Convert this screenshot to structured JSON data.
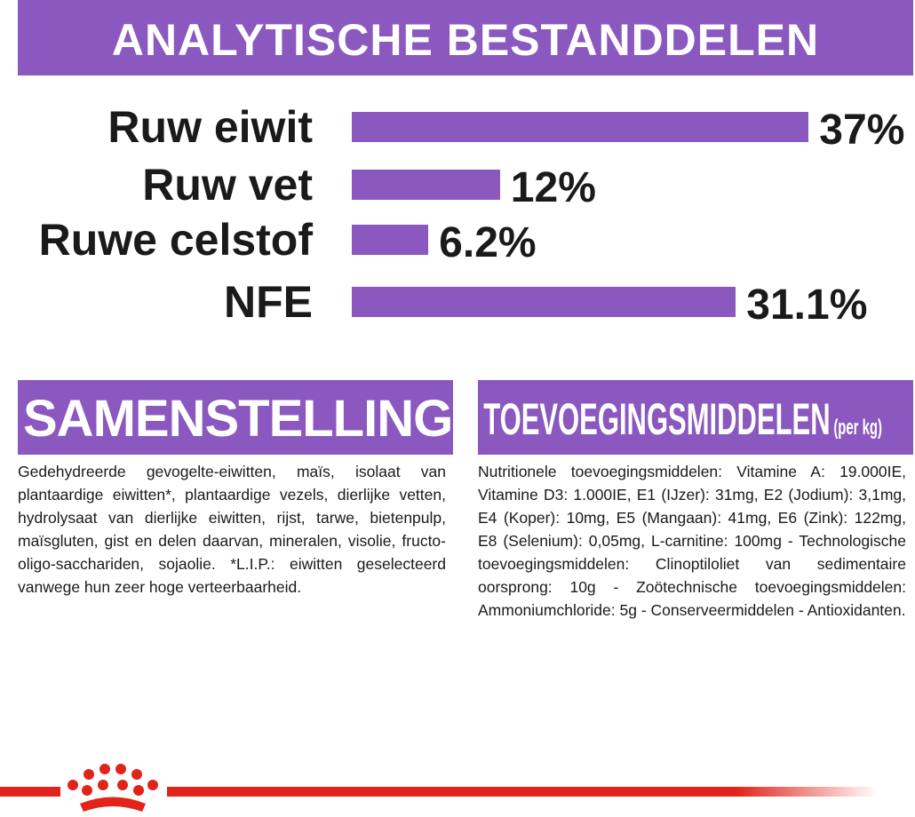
{
  "chart_data": {
    "type": "bar",
    "orientation": "horizontal",
    "title": "ANALYTISCHE BESTANDDELEN",
    "categories": [
      "Ruw eiwit",
      "Ruw vet",
      "Ruwe celstof",
      "NFE"
    ],
    "values": [
      37,
      12,
      6.2,
      31.1
    ],
    "value_labels": [
      "37%",
      "12%",
      "6.2%",
      "31.1%"
    ],
    "color": "#8a58be"
  },
  "composition": {
    "title": "SAMENSTELLING",
    "text": "Gedehydreerde gevogelte-eiwitten, maïs, isolaat van plantaardige eiwitten*, plantaardige vezels, dierlijke vetten, hydrolysaat van dierlijke eiwitten, rijst, tarwe, bietenpulp, maïsgluten, gist en delen daarvan, mineralen, visolie, fructo-oligo-sacchariden, sojaolie. *L.I.P.: eiwitten geselecteerd vanwege hun zeer hoge verteerbaarheid."
  },
  "additives": {
    "title": "TOEVOEGINGSMIDDELEN",
    "unit": "(per kg)",
    "text": "Nutritionele toevoegingsmiddelen: Vitamine A: 19.000IE, Vitamine D3: 1.000IE, E1 (IJzer): 31mg, E2 (Jodium): 3,1mg, E4 (Koper): 10mg, E5 (Mangaan): 41mg, E6 (Zink): 122mg, E8 (Selenium): 0,05mg, L-carnitine: 100mg - Technologische toevoegingsmiddelen: Clinoptiloliet van sedimentaire oorsprong: 10g - Zoötechnische toevoegingsmiddelen: Ammoniumchloride: 5g - Conserveermiddelen - Antioxidanten."
  }
}
